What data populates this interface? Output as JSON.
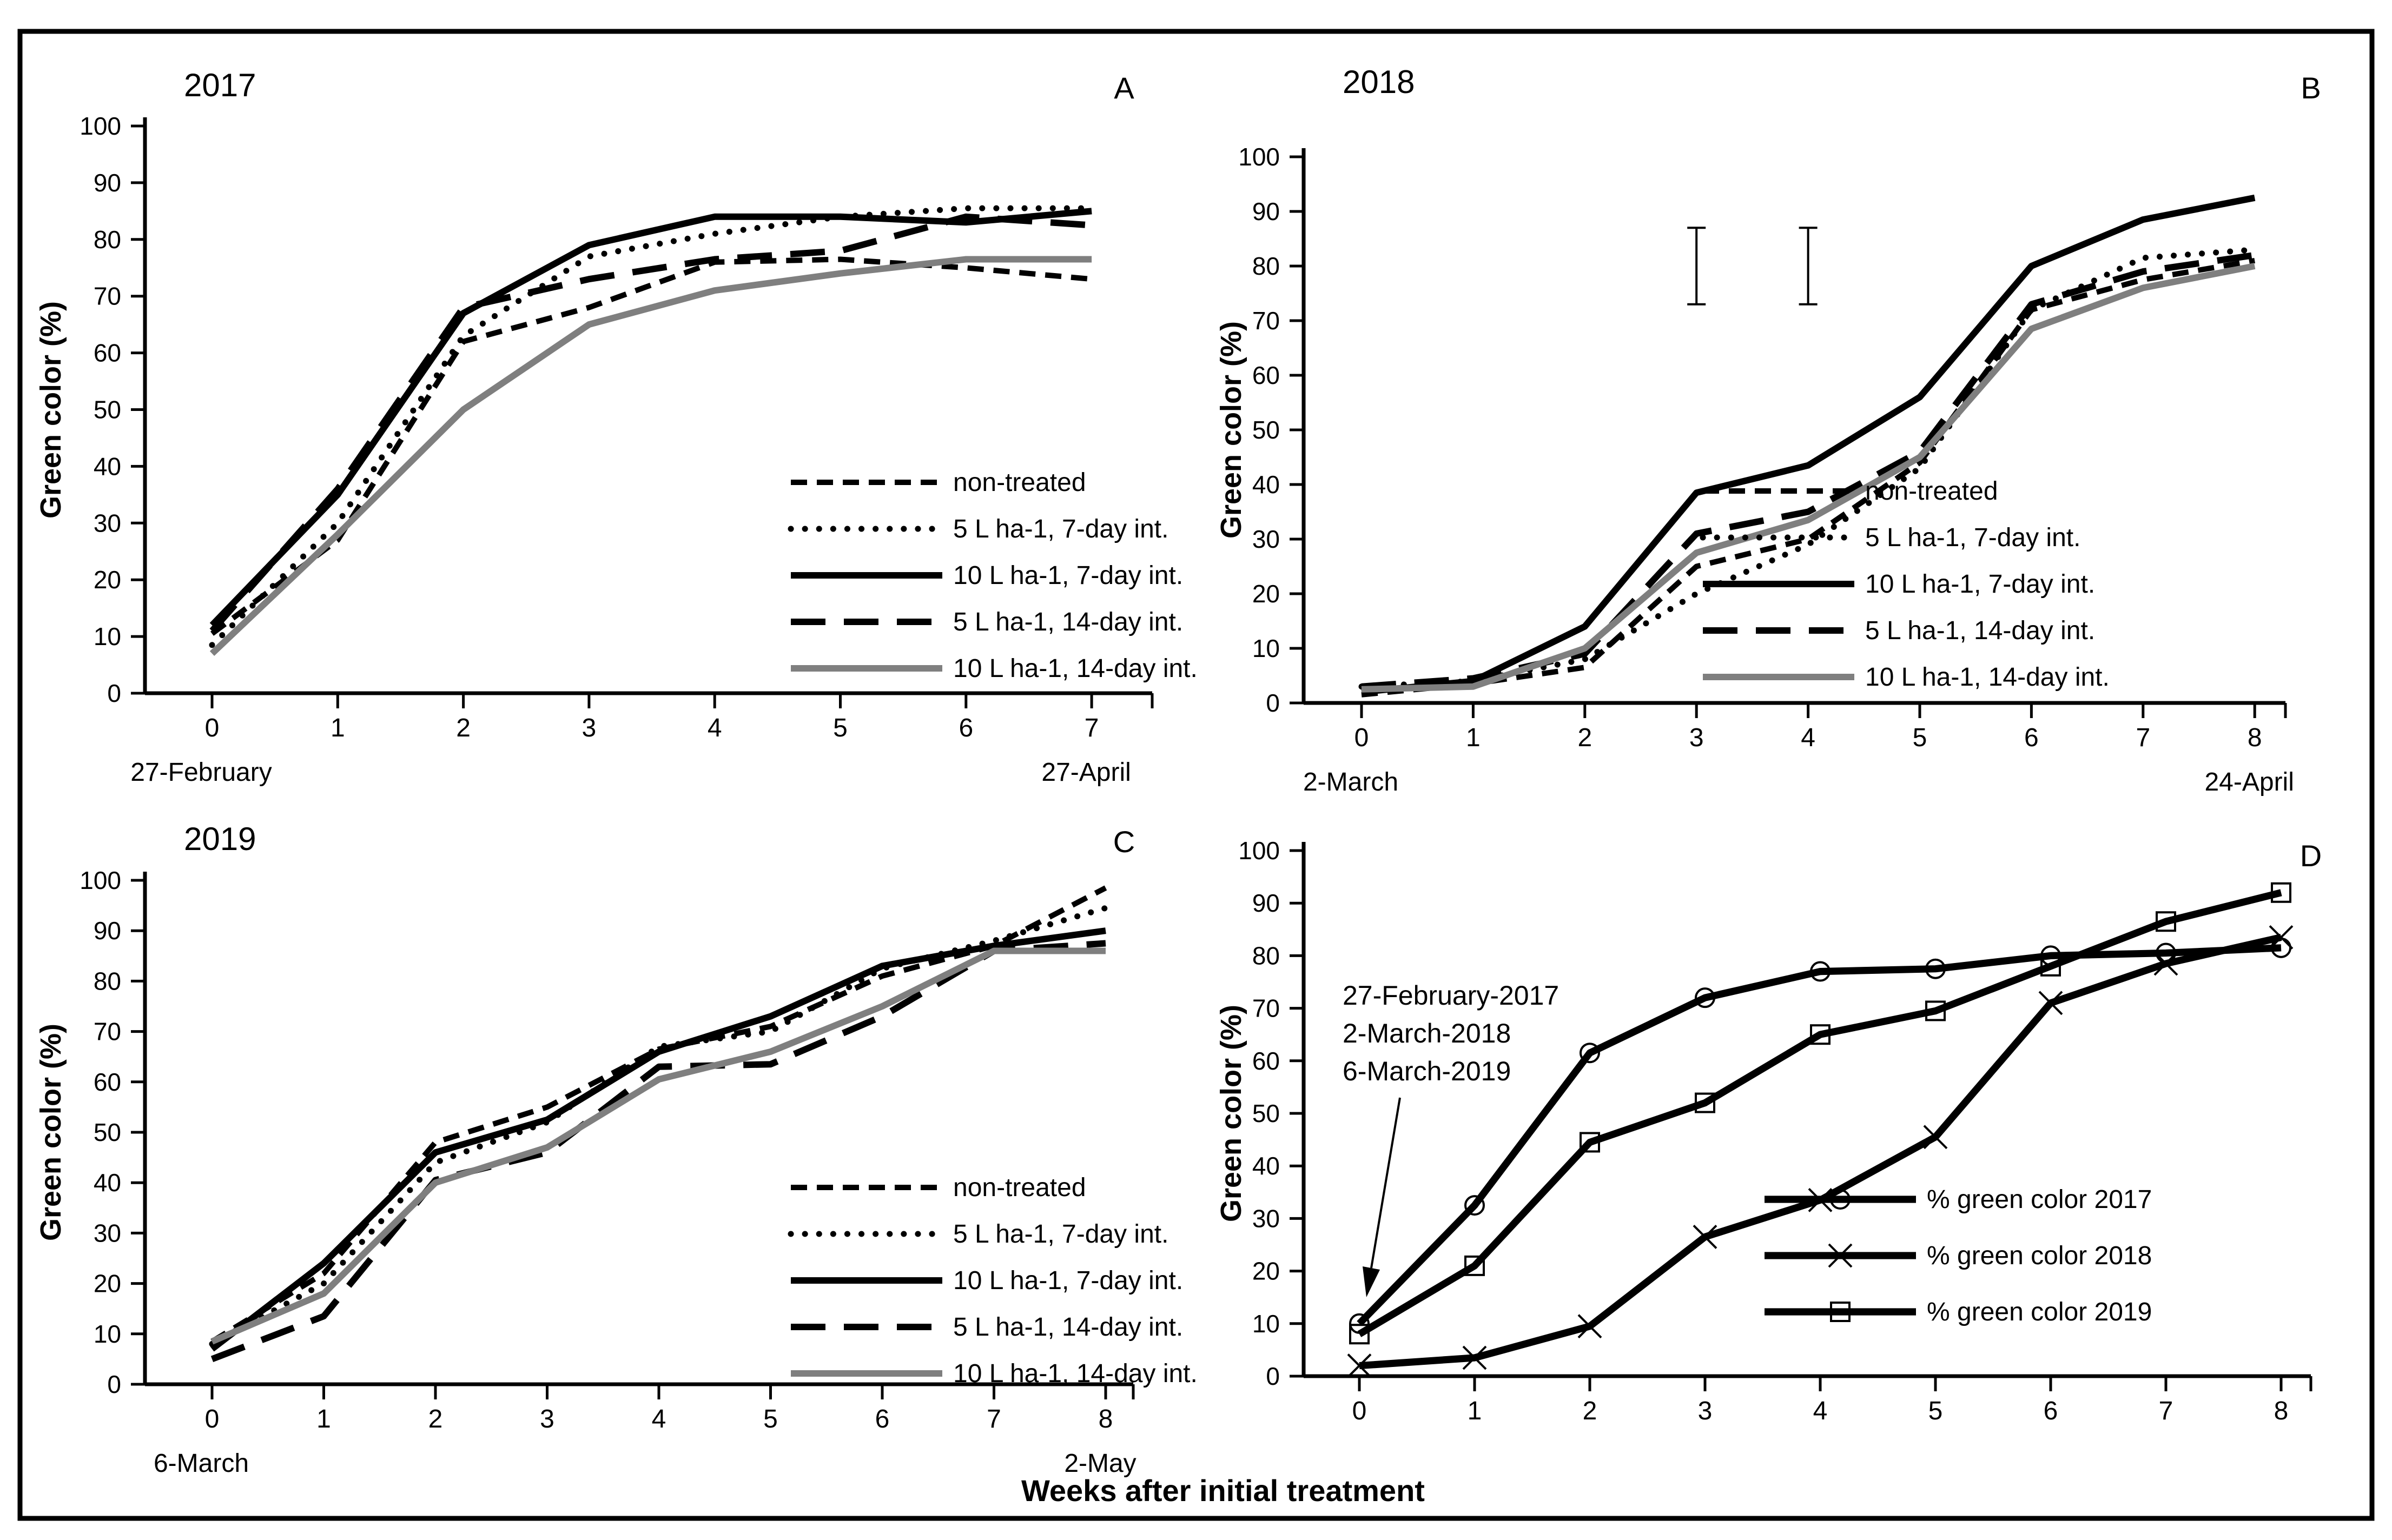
{
  "figure": {
    "shared_x_label": "Weeks after initial treatment",
    "y_axis_label": "Green color (%)",
    "background": "#ffffff",
    "border_color": "#000000",
    "series_colors": {
      "black": "#000000",
      "gray": "#7f7f7f"
    }
  },
  "chart_data": [
    {
      "type": "line",
      "panel_letter": "A",
      "title": "2017",
      "ylabel": "Green color (%)",
      "x": [
        0,
        1,
        2,
        3,
        4,
        5,
        6,
        7
      ],
      "start_date_label": "27-February",
      "end_date_label": "27-April",
      "ylim": [
        0,
        100
      ],
      "ytick_step": 10,
      "grid": false,
      "legend_position": "inside-lower-right",
      "series": [
        {
          "name": "non-treated",
          "line_style": "dash-short",
          "color": "#000000",
          "values": [
            10.5,
            27,
            62,
            68,
            76,
            76.5,
            75,
            73
          ]
        },
        {
          "name": "5 L ha-1, 7-day int.",
          "line_style": "dotted",
          "color": "#000000",
          "values": [
            8.5,
            30,
            63,
            77,
            81,
            84,
            85.5,
            85.5
          ]
        },
        {
          "name": "10 L ha-1, 7-day int.",
          "line_style": "solid",
          "color": "#000000",
          "values": [
            12,
            35,
            67,
            79,
            84,
            84,
            83,
            85
          ]
        },
        {
          "name": "5 L ha-1, 14-day int.",
          "line_style": "dash-long",
          "color": "#000000",
          "values": [
            11,
            36,
            68,
            73,
            76.5,
            78,
            84,
            82.5
          ]
        },
        {
          "name": "10 L ha-1, 14-day int.",
          "line_style": "solid",
          "color": "#7f7f7f",
          "values": [
            7,
            28,
            50,
            65,
            71,
            74,
            76.5,
            76.5
          ]
        }
      ]
    },
    {
      "type": "line",
      "panel_letter": "B",
      "title": "2018",
      "ylabel": "Green color (%)",
      "x": [
        0,
        1,
        2,
        3,
        4,
        5,
        6,
        7,
        8
      ],
      "start_date_label": "2-March",
      "end_date_label": "24-April",
      "ylim": [
        0,
        100
      ],
      "ytick_step": 10,
      "grid": false,
      "legend_position": "inside-lower-right",
      "error_bars": [
        {
          "x": 3,
          "y_low": 73,
          "y_high": 87
        },
        {
          "x": 4,
          "y_low": 73,
          "y_high": 87
        }
      ],
      "series": [
        {
          "name": "non-treated",
          "line_style": "dash-short",
          "color": "#000000",
          "values": [
            1.5,
            3.5,
            6.5,
            25,
            30,
            44,
            72,
            77.5,
            81
          ]
        },
        {
          "name": "5 L ha-1, 7-day int.",
          "line_style": "dotted",
          "color": "#000000",
          "values": [
            3,
            4,
            8,
            20,
            29,
            43,
            72,
            81.5,
            83
          ]
        },
        {
          "name": "10 L ha-1, 7-day int.",
          "line_style": "solid",
          "color": "#000000",
          "values": [
            2,
            4,
            14,
            38.5,
            43.5,
            56,
            80,
            88.5,
            92.5
          ]
        },
        {
          "name": "5 L ha-1, 14-day int.",
          "line_style": "dash-long",
          "color": "#000000",
          "values": [
            3,
            4.5,
            9,
            31,
            35,
            46,
            73,
            79,
            82
          ]
        },
        {
          "name": "10 L ha-1, 14-day int.",
          "line_style": "solid",
          "color": "#7f7f7f",
          "values": [
            2.5,
            3,
            10,
            27.5,
            33.5,
            45,
            68.5,
            76,
            80
          ]
        }
      ]
    },
    {
      "type": "line",
      "panel_letter": "C",
      "title": "2019",
      "ylabel": "Green color (%)",
      "x": [
        0,
        1,
        2,
        3,
        4,
        5,
        6,
        7,
        8
      ],
      "start_date_label": "6-March",
      "end_date_label": "2-May",
      "ylim": [
        0,
        100
      ],
      "ytick_step": 10,
      "grid": false,
      "legend_position": "inside-lower-right",
      "series": [
        {
          "name": "non-treated",
          "line_style": "dash-short",
          "color": "#000000",
          "values": [
            8.5,
            22,
            48,
            55,
            66.5,
            71,
            81,
            87,
            98.5
          ]
        },
        {
          "name": "5 L ha-1, 7-day int.",
          "line_style": "dotted",
          "color": "#000000",
          "values": [
            8,
            20,
            44,
            52,
            67,
            70,
            82.5,
            88,
            94.5
          ]
        },
        {
          "name": "10 L ha-1, 7-day int.",
          "line_style": "solid",
          "color": "#000000",
          "values": [
            7,
            24,
            46,
            52.5,
            66,
            73,
            83,
            87,
            90
          ]
        },
        {
          "name": "5 L ha-1, 14-day int.",
          "line_style": "dash-long",
          "color": "#000000",
          "values": [
            5,
            13.5,
            40.5,
            46,
            63,
            63.5,
            73,
            86,
            87.5
          ]
        },
        {
          "name": "10 L ha-1, 14-day int.",
          "line_style": "solid",
          "color": "#7f7f7f",
          "values": [
            8.5,
            18,
            40,
            47,
            60.5,
            66,
            75,
            86,
            86
          ]
        }
      ]
    },
    {
      "type": "line",
      "panel_letter": "D",
      "title": "",
      "ylabel": "Green color (%)",
      "x": [
        0,
        1,
        2,
        3,
        4,
        5,
        6,
        7,
        8
      ],
      "ylim": [
        0,
        100
      ],
      "ytick_step": 10,
      "grid": false,
      "legend_position": "inside-lower-right",
      "annotation": {
        "lines": [
          "27-February-2017",
          "2-March-2018",
          "6-March-2019"
        ],
        "points_to": "week-0 data points"
      },
      "series": [
        {
          "name": "% green color 2017",
          "line_style": "solid",
          "marker": "circle",
          "color": "#000000",
          "values": [
            10,
            32.5,
            61.5,
            72,
            77,
            77.5,
            80,
            80.5,
            81.5
          ]
        },
        {
          "name": "% green color 2018",
          "line_style": "solid",
          "marker": "x",
          "color": "#000000",
          "values": [
            2,
            3.5,
            9.5,
            26.5,
            33.5,
            45.5,
            71,
            78.5,
            83.5
          ]
        },
        {
          "name": "% green color 2019",
          "line_style": "solid",
          "marker": "square",
          "color": "#000000",
          "values": [
            8,
            21,
            44.5,
            52,
            65,
            69.5,
            78,
            86.5,
            92
          ]
        }
      ]
    }
  ]
}
